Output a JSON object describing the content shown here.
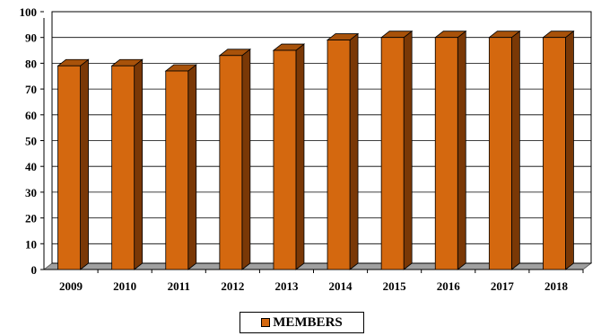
{
  "chart_data": {
    "type": "bar",
    "title": "",
    "xlabel": "",
    "ylabel": "",
    "categories": [
      "2009",
      "2010",
      "2011",
      "2012",
      "2013",
      "2014",
      "2015",
      "2016",
      "2017",
      "2018"
    ],
    "series": [
      {
        "name": "MEMBERS",
        "values": [
          79,
          79,
          77,
          83,
          85,
          89,
          90,
          90,
          90,
          90
        ]
      }
    ],
    "ylim": [
      0,
      100
    ],
    "yticks": [
      0,
      10,
      20,
      30,
      40,
      50,
      60,
      70,
      80,
      90,
      100
    ],
    "grid": true,
    "legend_position": "bottom",
    "style": "3d",
    "colors": {
      "bar_front": "#D4680F",
      "bar_side": "#7A3806",
      "bar_top": "#A8520A",
      "floor": "#A0A0A0",
      "axis": "#000000"
    }
  }
}
